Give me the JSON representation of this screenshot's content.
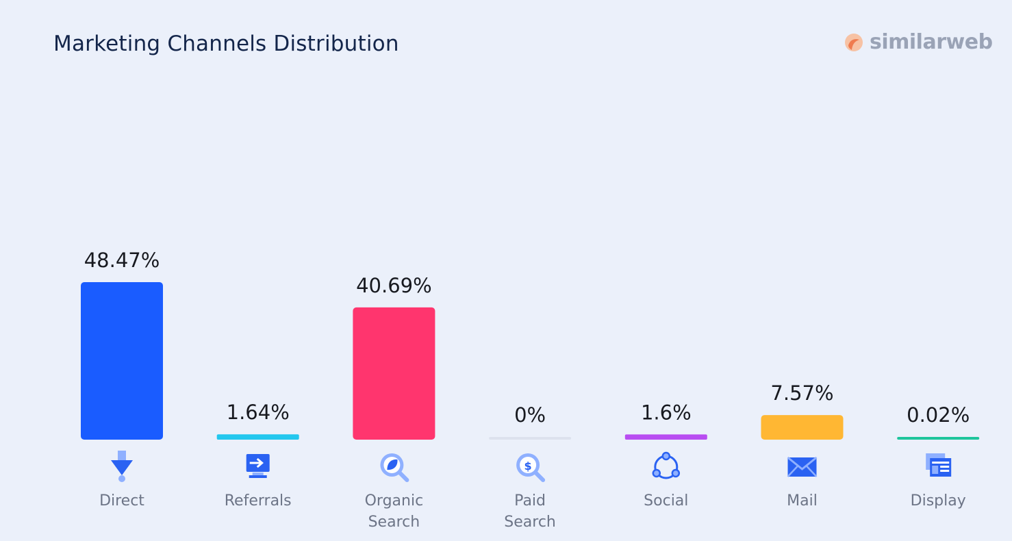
{
  "header": {
    "title": "Marketing Channels Distribution",
    "brand": "similarweb"
  },
  "chart_data": {
    "type": "bar",
    "title": "Marketing Channels Distribution",
    "categories": [
      "Direct",
      "Referrals",
      "Organic Search",
      "Paid Search",
      "Social",
      "Mail",
      "Display"
    ],
    "category_lines": [
      [
        "Direct"
      ],
      [
        "Referrals"
      ],
      [
        "Organic",
        "Search"
      ],
      [
        "Paid",
        "Search"
      ],
      [
        "Social"
      ],
      [
        "Mail"
      ],
      [
        "Display"
      ]
    ],
    "values": [
      48.47,
      1.64,
      40.69,
      0,
      1.6,
      7.57,
      0.02
    ],
    "value_labels": [
      "48.47%",
      "1.64%",
      "40.69%",
      "0%",
      "1.6%",
      "7.57%",
      "0.02%"
    ],
    "colors": [
      "#1a5cff",
      "#23c7ee",
      "#ff356e",
      "#dde2ee",
      "#b84df1",
      "#ffb733",
      "#1ec59c"
    ],
    "icons": [
      "direct-arrow-icon",
      "referrals-monitor-icon",
      "organic-search-icon",
      "paid-search-icon",
      "social-network-icon",
      "mail-envelope-icon",
      "display-window-icon"
    ],
    "ylim": [
      0,
      100
    ],
    "grid": false,
    "legend": "none"
  }
}
